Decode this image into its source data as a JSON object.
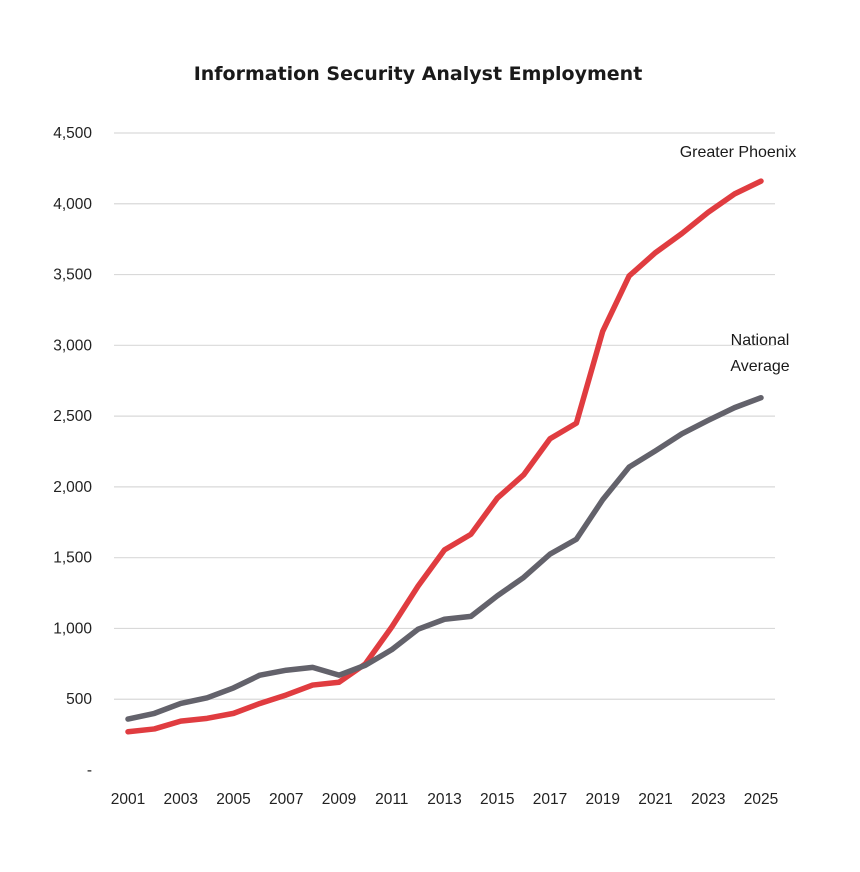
{
  "chart_data": {
    "type": "line",
    "title": "Information Security Analyst Employment",
    "xlabel": "",
    "ylabel": "",
    "x": [
      2001,
      2002,
      2003,
      2004,
      2005,
      2006,
      2007,
      2008,
      2009,
      2010,
      2011,
      2012,
      2013,
      2014,
      2015,
      2016,
      2017,
      2018,
      2019,
      2020,
      2021,
      2022,
      2023,
      2024,
      2025
    ],
    "x_tick_labels": [
      "2001",
      "2003",
      "2005",
      "2007",
      "2009",
      "2011",
      "2013",
      "2015",
      "2017",
      "2019",
      "2021",
      "2023",
      "2025"
    ],
    "y_ticks": [
      0,
      500,
      1000,
      1500,
      2000,
      2500,
      3000,
      3500,
      4000,
      4500
    ],
    "y_tick_labels": [
      "-",
      "500",
      "1,000",
      "1,500",
      "2,000",
      "2,500",
      "3,000",
      "3,500",
      "4,000",
      "4,500"
    ],
    "ylim": [
      0,
      4500
    ],
    "xlim": [
      2001,
      2025
    ],
    "grid": true,
    "legend": "none",
    "series": [
      {
        "name": "Greater Phoenix",
        "label_lines": [
          "Greater Phoenix"
        ],
        "color": "#e03c40",
        "values": [
          270,
          290,
          345,
          365,
          400,
          470,
          530,
          600,
          620,
          750,
          1010,
          1300,
          1555,
          1665,
          1920,
          2085,
          2340,
          2450,
          3100,
          3490,
          3655,
          3790,
          3940,
          4070,
          4160
        ]
      },
      {
        "name": "National Average",
        "label_lines": [
          "National",
          "Average"
        ],
        "color": "#63626b",
        "values": [
          360,
          400,
          470,
          510,
          580,
          670,
          705,
          725,
          670,
          740,
          850,
          995,
          1065,
          1085,
          1230,
          1360,
          1525,
          1630,
          1910,
          2140,
          2255,
          2375,
          2470,
          2560,
          2630
        ]
      }
    ]
  }
}
